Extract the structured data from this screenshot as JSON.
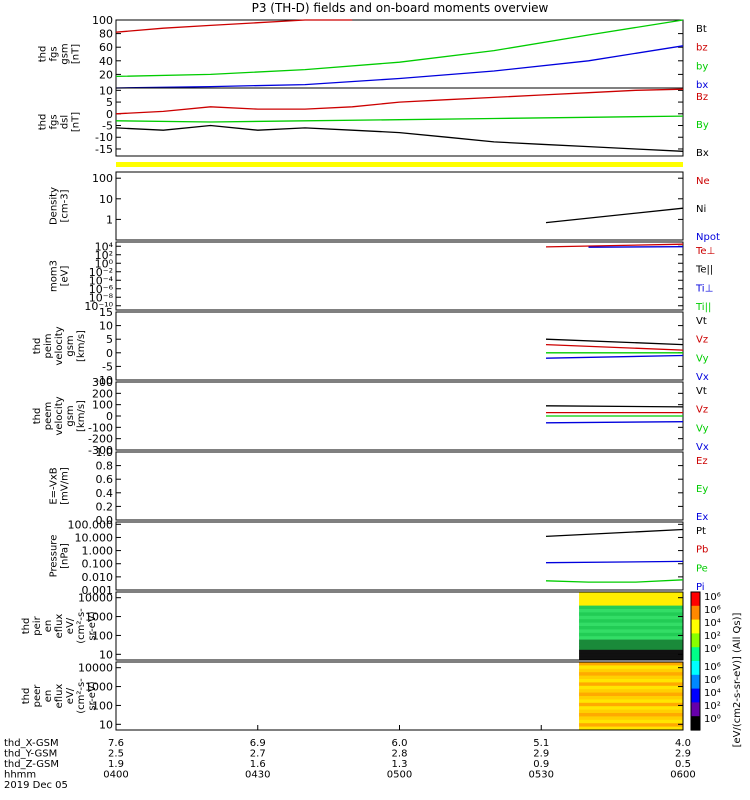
{
  "title": "P3 (TH-D) fields and on-board moments overview",
  "colors": {
    "black": "#000000",
    "red": "#cc0000",
    "green": "#00cc00",
    "blue": "#0000dd",
    "yellow": "#ffff00"
  },
  "chart_data": {
    "type": "line",
    "panels": [
      {
        "id": "fgs-gsm",
        "ylabel": [
          "thd",
          "fgs",
          "gsm",
          "[nT]"
        ],
        "ylim": [
          0,
          100
        ],
        "scale": "linear",
        "ticks": [
          "100",
          "80",
          "60",
          "40",
          "20"
        ],
        "legend": [
          {
            "name": "Bt",
            "color": "black"
          },
          {
            "name": "bz",
            "color": "red"
          },
          {
            "name": "by",
            "color": "green"
          },
          {
            "name": "bx",
            "color": "blue"
          }
        ],
        "series": [
          {
            "name": "bt",
            "color": "red",
            "x": [
              0,
              10,
              20,
              30,
              35,
              40,
              50
            ],
            "y": [
              82,
              88,
              92,
              96,
              98,
              100,
              104
            ]
          },
          {
            "name": "by",
            "color": "green",
            "x": [
              0,
              20,
              40,
              60,
              80,
              100,
              120
            ],
            "y": [
              17,
              20,
              27,
              38,
              55,
              78,
              105
            ]
          },
          {
            "name": "bx",
            "color": "blue",
            "x": [
              0,
              20,
              40,
              60,
              80,
              100,
              120
            ],
            "y": [
              0,
              2,
              5,
              14,
              25,
              40,
              62
            ]
          }
        ]
      },
      {
        "id": "fgs-dsl",
        "ylabel": [
          "thd",
          "fgs",
          "dsl",
          "[nT]"
        ],
        "ylim": [
          -18,
          11
        ],
        "scale": "linear",
        "ticks": [
          "10",
          "5",
          "0",
          "-5",
          "-10",
          "-15"
        ],
        "legend": [
          {
            "name": "Bz",
            "color": "red"
          },
          {
            "name": "By",
            "color": "green"
          },
          {
            "name": "Bx",
            "color": "black"
          }
        ],
        "series": [
          {
            "name": "Bz",
            "color": "red",
            "x": [
              0,
              10,
              20,
              30,
              40,
              50,
              60,
              70,
              80,
              90,
              100,
              110,
              120
            ],
            "y": [
              0,
              1,
              3,
              2,
              2,
              3,
              5,
              6,
              7,
              8,
              9,
              10,
              10.5
            ]
          },
          {
            "name": "By",
            "color": "green",
            "x": [
              0,
              20,
              40,
              60,
              80,
              100,
              120
            ],
            "y": [
              -3,
              -3.5,
              -3,
              -2.5,
              -2,
              -1.5,
              -1
            ]
          },
          {
            "name": "Bx",
            "color": "black",
            "x": [
              0,
              10,
              20,
              30,
              40,
              50,
              60,
              70,
              80,
              90,
              100,
              110,
              120
            ],
            "y": [
              -6,
              -7,
              -5,
              -7,
              -6,
              -7,
              -8,
              -10,
              -12,
              -13,
              -14,
              -15,
              -16
            ]
          }
        ]
      },
      {
        "id": "density",
        "ylabel": [
          "Density",
          "[cm-3]"
        ],
        "ylim": [
          0.1,
          200
        ],
        "scale": "log",
        "ticks": [
          "100",
          "10",
          "1"
        ],
        "legend": [
          {
            "name": "Ne",
            "color": "red"
          },
          {
            "name": "Ni",
            "color": "black"
          },
          {
            "name": "Npot",
            "color": "blue"
          }
        ],
        "series": [
          {
            "name": "Ni",
            "color": "black",
            "x": [
              91,
              120
            ],
            "y": [
              0.7,
              3.5
            ]
          }
        ]
      },
      {
        "id": "temperature",
        "ylabel": [
          "mom3",
          "[eV]"
        ],
        "ylim": [
          1e-11,
          100000.0
        ],
        "scale": "log",
        "ticks": [
          "10⁴",
          "10²",
          "10⁰",
          "10⁻²",
          "10⁻⁴",
          "10⁻⁶",
          "10⁻⁸",
          "10⁻¹⁰"
        ],
        "legend": [
          {
            "name": "Te⊥",
            "color": "red"
          },
          {
            "name": "Te||",
            "color": "black"
          },
          {
            "name": "Ti⊥",
            "color": "blue"
          },
          {
            "name": "Ti||",
            "color": "green"
          }
        ],
        "series": [
          {
            "name": "Te",
            "color": "red",
            "x": [
              91,
              120
            ],
            "y": [
              7000,
              30000
            ]
          },
          {
            "name": "Ti",
            "color": "blue",
            "x": [
              100,
              120
            ],
            "y": [
              6000,
              8000
            ]
          }
        ]
      },
      {
        "id": "peim-velocity",
        "ylabel": [
          "thd",
          "peim",
          "velocity",
          "gsm",
          "[km/s]"
        ],
        "ylim": [
          -10,
          15
        ],
        "scale": "linear",
        "ticks": [
          "15",
          "10",
          "5",
          "0",
          "-5",
          "-10"
        ],
        "legend": [
          {
            "name": "Vt",
            "color": "black"
          },
          {
            "name": "Vz",
            "color": "red"
          },
          {
            "name": "Vy",
            "color": "green"
          },
          {
            "name": "Vx",
            "color": "blue"
          }
        ],
        "series": [
          {
            "name": "Vt",
            "color": "black",
            "x": [
              91,
              120
            ],
            "y": [
              5,
              3
            ]
          },
          {
            "name": "Vz",
            "color": "red",
            "x": [
              91,
              120
            ],
            "y": [
              3,
              1
            ]
          },
          {
            "name": "Vy",
            "color": "green",
            "x": [
              91,
              120
            ],
            "y": [
              0,
              0
            ]
          },
          {
            "name": "Vx",
            "color": "blue",
            "x": [
              91,
              120
            ],
            "y": [
              -2,
              -1
            ]
          }
        ]
      },
      {
        "id": "peem-velocity",
        "ylabel": [
          "thd",
          "peem",
          "velocity",
          "gsm",
          "[km/s]"
        ],
        "ylim": [
          -300,
          300
        ],
        "scale": "linear",
        "ticks": [
          "300",
          "200",
          "100",
          "0",
          "-100",
          "-200",
          "-300"
        ],
        "legend": [
          {
            "name": "Vt",
            "color": "black"
          },
          {
            "name": "Vz",
            "color": "red"
          },
          {
            "name": "Vy",
            "color": "green"
          },
          {
            "name": "Vx",
            "color": "blue"
          }
        ],
        "series": [
          {
            "name": "Vt",
            "color": "black",
            "x": [
              91,
              120
            ],
            "y": [
              90,
              80
            ]
          },
          {
            "name": "Vz",
            "color": "red",
            "x": [
              91,
              120
            ],
            "y": [
              30,
              30
            ]
          },
          {
            "name": "Vy",
            "color": "green",
            "x": [
              91,
              120
            ],
            "y": [
              0,
              0
            ]
          },
          {
            "name": "Vx",
            "color": "blue",
            "x": [
              91,
              120
            ],
            "y": [
              -60,
              -50
            ]
          }
        ]
      },
      {
        "id": "efield",
        "ylabel": [
          "E=-VxB",
          "[mV/m]"
        ],
        "ylim": [
          0,
          1
        ],
        "scale": "linear",
        "ticks": [
          "1.0",
          "0.8",
          "0.6",
          "0.4",
          "0.2",
          "0.0"
        ],
        "legend": [
          {
            "name": "Ez",
            "color": "red"
          },
          {
            "name": "Ey",
            "color": "green"
          },
          {
            "name": "Ex",
            "color": "blue"
          }
        ],
        "series": []
      },
      {
        "id": "pressure",
        "ylabel": [
          "Pressure",
          "[nPa]"
        ],
        "ylim": [
          0.001,
          150
        ],
        "scale": "log",
        "ticks": [
          "100.000",
          "10.000",
          "1.000",
          "0.100",
          "0.010",
          "0.001"
        ],
        "legend": [
          {
            "name": "Pt",
            "color": "black"
          },
          {
            "name": "Pb",
            "color": "red"
          },
          {
            "name": "Pe",
            "color": "green"
          },
          {
            "name": "Pi",
            "color": "blue"
          }
        ],
        "series": [
          {
            "name": "Pt",
            "color": "black",
            "x": [
              91,
              120
            ],
            "y": [
              12,
              40
            ]
          },
          {
            "name": "Pi",
            "color": "blue",
            "x": [
              91,
              120
            ],
            "y": [
              0.12,
              0.15
            ]
          },
          {
            "name": "Pe",
            "color": "green",
            "x": [
              91,
              100,
              110,
              120
            ],
            "y": [
              0.005,
              0.004,
              0.004,
              0.006
            ]
          }
        ]
      },
      {
        "id": "peir",
        "ylabel": [
          "thd",
          "peir",
          "en",
          "eflux",
          "eV/",
          "(cm²-s-",
          "sr-eV)"
        ],
        "ylim": [
          5,
          20000
        ],
        "scale": "log",
        "ticks": [
          "10000",
          "1000",
          "100",
          "10"
        ],
        "spectrogram": {
          "x_start": 98,
          "x_end": 120
        },
        "legend": [],
        "series": []
      },
      {
        "id": "peer",
        "ylabel": [
          "thd",
          "peer",
          "en",
          "eflux",
          "eV/",
          "(cm²-s-",
          "sr-eV)"
        ],
        "ylim": [
          5,
          20000
        ],
        "scale": "log",
        "ticks": [
          "10000",
          "1000",
          "100",
          "10"
        ],
        "spectrogram": {
          "x_start": 98,
          "x_end": 120
        },
        "legend": [],
        "series": []
      }
    ],
    "colorbar": {
      "ticks": [
        "10⁶",
        "10⁶",
        "10⁴",
        "10²",
        "10⁰"
      ],
      "label": "[eV/(cm2-s-sr-eV)] (All Qs)]"
    },
    "xaxis": {
      "rows": [
        {
          "label": "thd_X-GSM",
          "values": [
            "7.6",
            "6.9",
            "6.0",
            "5.1",
            "4.0"
          ]
        },
        {
          "label": "thd_Y-GSM",
          "values": [
            "2.5",
            "2.7",
            "2.8",
            "2.9",
            "2.9"
          ]
        },
        {
          "label": "thd_Z-GSM",
          "values": [
            "1.9",
            "1.6",
            "1.3",
            "0.9",
            "0.5"
          ]
        },
        {
          "label": "hhmm",
          "values": [
            "0400",
            "0430",
            "0500",
            "0530",
            "0600"
          ]
        }
      ],
      "date": "2019 Dec 05",
      "tick_minutes": [
        0,
        30,
        60,
        90,
        120
      ]
    }
  }
}
